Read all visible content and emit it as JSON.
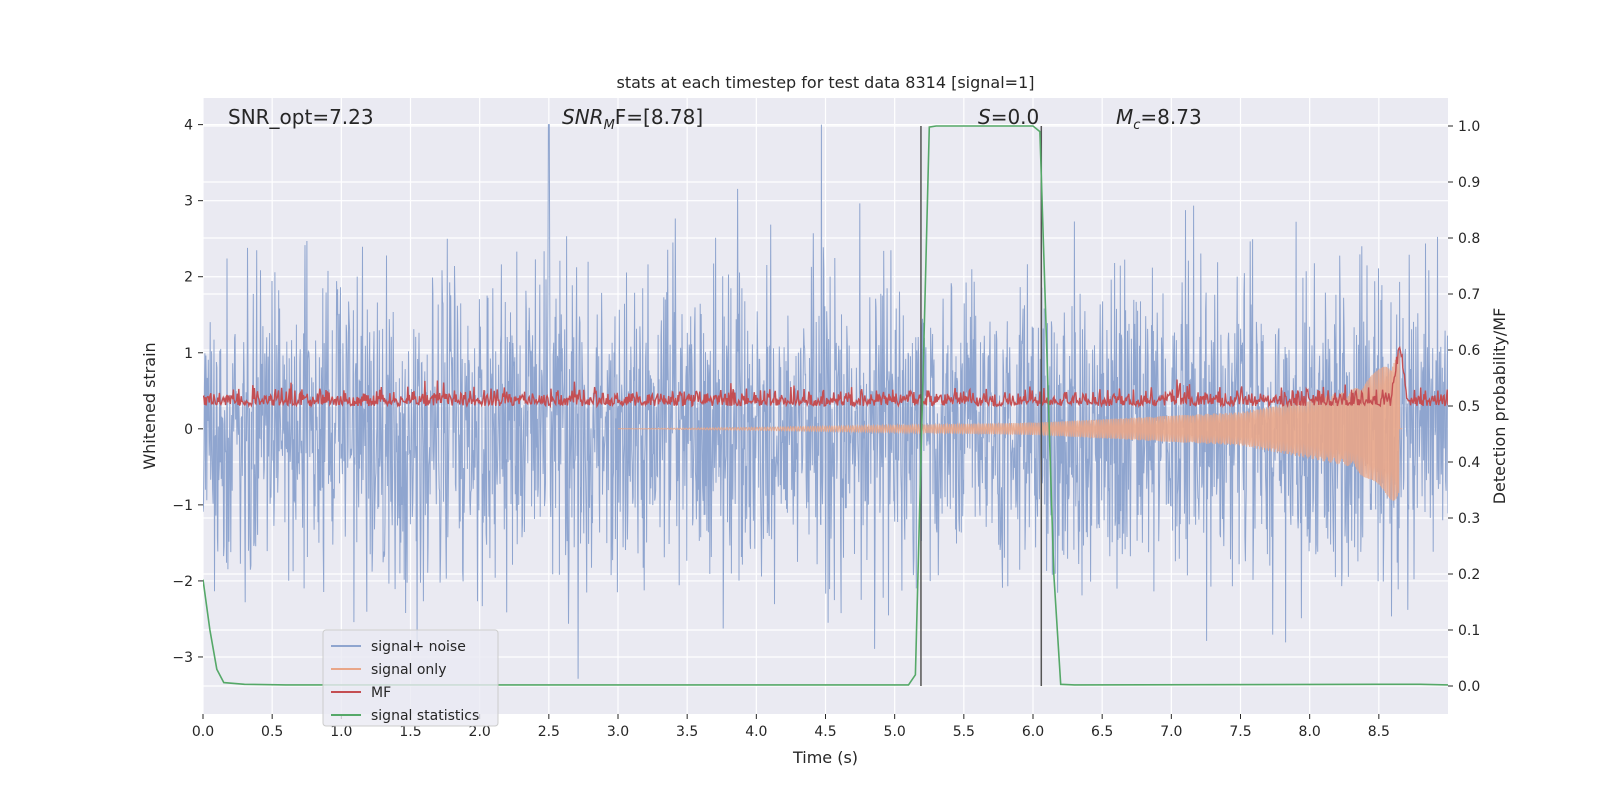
{
  "chart_data": {
    "type": "line",
    "title": "stats at each timestep for test data 8314 [signal=1]",
    "xlabel": "Time (s)",
    "ylabel": "Whitened strain",
    "ylabel_right": "Detection probability/MF",
    "xlim": [
      0.0,
      9.0
    ],
    "ylim": [
      -3.75,
      4.35
    ],
    "ylim_right": [
      -0.05,
      1.05
    ],
    "x_ticks": [
      0.0,
      0.5,
      1.0,
      1.5,
      2.0,
      2.5,
      3.0,
      3.5,
      4.0,
      4.5,
      5.0,
      5.5,
      6.0,
      6.5,
      7.0,
      7.5,
      8.0,
      8.5
    ],
    "x_tick_labels": [
      "0.0",
      "0.5",
      "1.0",
      "1.5",
      "2.0",
      "2.5",
      "3.0",
      "3.5",
      "4.0",
      "4.5",
      "5.0",
      "5.5",
      "6.0",
      "6.5",
      "7.0",
      "7.5",
      "8.0",
      "8.5"
    ],
    "y_ticks": [
      4,
      3,
      2,
      1,
      0,
      -1,
      -2,
      -3
    ],
    "y_tick_labels": [
      "4",
      "3",
      "2",
      "1",
      "0",
      "−1",
      "−2",
      "−3"
    ],
    "y_ticks_right": [
      1.0,
      0.9,
      0.8,
      0.7,
      0.6,
      0.5,
      0.4,
      0.3,
      0.2,
      0.1,
      0.0
    ],
    "y_tick_labels_right": [
      "1.0",
      "0.9",
      "0.8",
      "0.7",
      "0.6",
      "0.5",
      "0.4",
      "0.3",
      "0.2",
      "0.1",
      "0.0"
    ],
    "grid": true,
    "legend_position": "lower-left",
    "annotations": {
      "snr_opt": "SNR_opt=7.23",
      "snr_mf_main": "SNR",
      "snr_mf_sub": "M",
      "snr_mf_rest": "F=[8.78]",
      "s_main": "S",
      "s_rest": "=0.0",
      "mc_main": "M",
      "mc_sub": "c",
      "mc_rest": "=8.73"
    },
    "vertical_lines_x": [
      5.19,
      6.06
    ],
    "series": [
      {
        "name": "signal+ noise",
        "color": "#8fa5cf",
        "axis": "left",
        "description_values": "noise band roughly between -2.5 and 2.5, peaks up to 4 near t=2.5 s"
      },
      {
        "name": "signal only",
        "color": "#e9a688",
        "axis": "left",
        "envelope": {
          "t": [
            4.0,
            6.0,
            7.5,
            8.3,
            8.6,
            8.65
          ],
          "amp": [
            0.02,
            0.08,
            0.22,
            0.5,
            0.95,
            1.0
          ]
        }
      },
      {
        "name": "MF",
        "color": "#c44e52",
        "axis": "right",
        "baseline": 0.5,
        "peak_t": 8.65,
        "peak_value": 0.6
      },
      {
        "name": "signal statistics",
        "color": "#55a868",
        "axis": "right",
        "x": [
          0.0,
          0.05,
          0.1,
          0.15,
          0.3,
          0.6,
          1.0,
          5.1,
          5.15,
          5.2,
          5.25,
          5.3,
          5.5,
          6.0,
          6.05,
          6.1,
          6.15,
          6.2,
          6.3,
          8.5,
          8.8,
          9.0
        ],
        "y": [
          0.19,
          0.1,
          0.03,
          0.006,
          0.003,
          0.002,
          0.002,
          0.002,
          0.02,
          0.5,
          0.998,
          1.0,
          1.0,
          1.0,
          0.99,
          0.6,
          0.2,
          0.003,
          0.002,
          0.003,
          0.003,
          0.002
        ]
      }
    ]
  }
}
